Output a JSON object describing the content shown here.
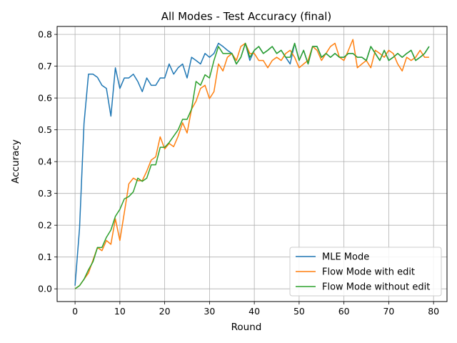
{
  "chart_data": {
    "type": "line",
    "title": "All Modes - Test Accuracy (final)",
    "xlabel": "Round",
    "ylabel": "Accuracy",
    "xlim": [
      -4,
      83
    ],
    "ylim": [
      -0.04,
      0.825
    ],
    "xticks": [
      0,
      10,
      20,
      30,
      40,
      50,
      60,
      70,
      80
    ],
    "yticks": [
      0.0,
      0.1,
      0.2,
      0.3,
      0.4,
      0.5,
      0.6,
      0.7,
      0.8
    ],
    "xtick_labels": [
      "0",
      "10",
      "20",
      "30",
      "40",
      "50",
      "60",
      "70",
      "80"
    ],
    "ytick_labels": [
      "0.0",
      "0.1",
      "0.2",
      "0.3",
      "0.4",
      "0.5",
      "0.6",
      "0.7",
      "0.8"
    ],
    "grid": true,
    "legend_position": "lower-right",
    "series": [
      {
        "name": "MLE Mode",
        "color": "#1f77b4",
        "values": [
          0.01,
          0.19,
          0.52,
          0.675,
          0.675,
          0.665,
          0.64,
          0.63,
          0.543,
          0.695,
          0.63,
          0.663,
          0.663,
          0.675,
          0.652,
          0.62,
          0.663,
          0.64,
          0.64,
          0.663,
          0.663,
          0.707,
          0.675,
          0.695,
          0.707,
          0.663,
          0.728,
          0.718,
          0.707,
          0.74,
          0.728,
          0.74,
          0.772,
          0.762,
          0.75,
          0.74,
          0.707,
          0.728,
          0.772,
          0.718,
          0.75,
          0.762,
          0.74,
          0.75,
          0.762,
          0.74,
          0.75,
          0.728,
          0.707,
          0.772,
          0.718,
          0.75,
          0.707,
          0.762,
          0.762,
          0.728,
          0.74,
          0.728,
          0.74,
          0.728,
          0.728,
          0.74,
          0.74,
          0.728,
          0.728,
          0.718,
          0.762,
          0.74,
          0.718,
          0.75,
          0.718,
          0.728,
          0.74,
          0.728,
          0.74,
          0.75,
          0.718,
          0.728,
          0.74,
          0.762
        ]
      },
      {
        "name": "Flow Mode with edit",
        "color": "#ff7f0e",
        "values": [
          0.0,
          0.01,
          0.03,
          0.05,
          0.09,
          0.13,
          0.12,
          0.152,
          0.14,
          0.22,
          0.152,
          0.24,
          0.33,
          0.348,
          0.34,
          0.34,
          0.37,
          0.405,
          0.415,
          0.478,
          0.44,
          0.457,
          0.447,
          0.48,
          0.522,
          0.49,
          0.565,
          0.59,
          0.63,
          0.64,
          0.598,
          0.62,
          0.707,
          0.685,
          0.728,
          0.74,
          0.718,
          0.762,
          0.772,
          0.74,
          0.74,
          0.718,
          0.718,
          0.695,
          0.718,
          0.728,
          0.718,
          0.74,
          0.75,
          0.728,
          0.695,
          0.707,
          0.718,
          0.762,
          0.75,
          0.718,
          0.74,
          0.762,
          0.772,
          0.728,
          0.718,
          0.75,
          0.784,
          0.695,
          0.707,
          0.718,
          0.695,
          0.75,
          0.74,
          0.728,
          0.75,
          0.74,
          0.707,
          0.685,
          0.728,
          0.718,
          0.728,
          0.75,
          0.728,
          0.728
        ]
      },
      {
        "name": "Flow Mode without edit",
        "color": "#2ca02c",
        "values": [
          0.0,
          0.01,
          0.03,
          0.06,
          0.085,
          0.13,
          0.13,
          0.162,
          0.185,
          0.228,
          0.25,
          0.283,
          0.29,
          0.305,
          0.348,
          0.338,
          0.348,
          0.39,
          0.39,
          0.445,
          0.445,
          0.46,
          0.48,
          0.5,
          0.533,
          0.533,
          0.565,
          0.652,
          0.64,
          0.673,
          0.663,
          0.718,
          0.762,
          0.74,
          0.74,
          0.74,
          0.707,
          0.728,
          0.772,
          0.728,
          0.75,
          0.762,
          0.74,
          0.75,
          0.762,
          0.74,
          0.75,
          0.728,
          0.728,
          0.772,
          0.718,
          0.75,
          0.707,
          0.762,
          0.762,
          0.728,
          0.74,
          0.728,
          0.74,
          0.728,
          0.728,
          0.74,
          0.74,
          0.728,
          0.728,
          0.718,
          0.762,
          0.74,
          0.718,
          0.75,
          0.718,
          0.728,
          0.74,
          0.728,
          0.74,
          0.75,
          0.718,
          0.728,
          0.74,
          0.762
        ]
      }
    ]
  }
}
